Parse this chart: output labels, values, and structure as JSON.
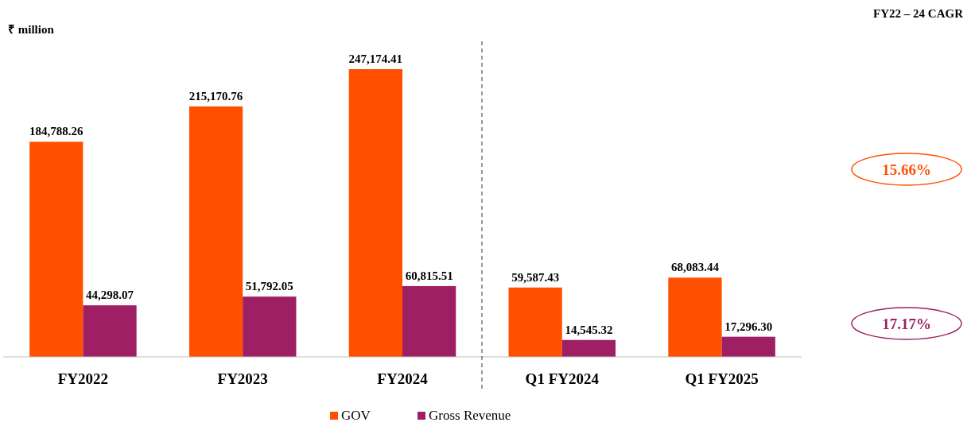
{
  "chart_data": {
    "type": "bar",
    "ylabel": "₹ million",
    "categories": [
      "FY2022",
      "FY2023",
      "FY2024",
      "Q1 FY2024",
      "Q1 FY2025"
    ],
    "series": [
      {
        "name": "GOV",
        "color": "#ff5000",
        "values": [
          184788.26,
          215170.76,
          247174.41,
          59587.43,
          68083.44
        ],
        "value_labels": [
          "184,788.26",
          "215,170.76",
          "247,174.41",
          "59,587.43",
          "68,083.44"
        ]
      },
      {
        "name": "Gross Revenue",
        "color": "#9e1f63",
        "values": [
          44298.07,
          51792.05,
          60815.51,
          14545.32,
          17296.3
        ],
        "value_labels": [
          "44,298.07",
          "51,792.05",
          "60,815.51",
          "14,545.32",
          "17,296.30"
        ]
      }
    ],
    "legend": "bottom",
    "grid": false,
    "annotations": [
      "FY22 – 24 CAGR",
      "15.66%",
      "17.17%"
    ]
  }
}
